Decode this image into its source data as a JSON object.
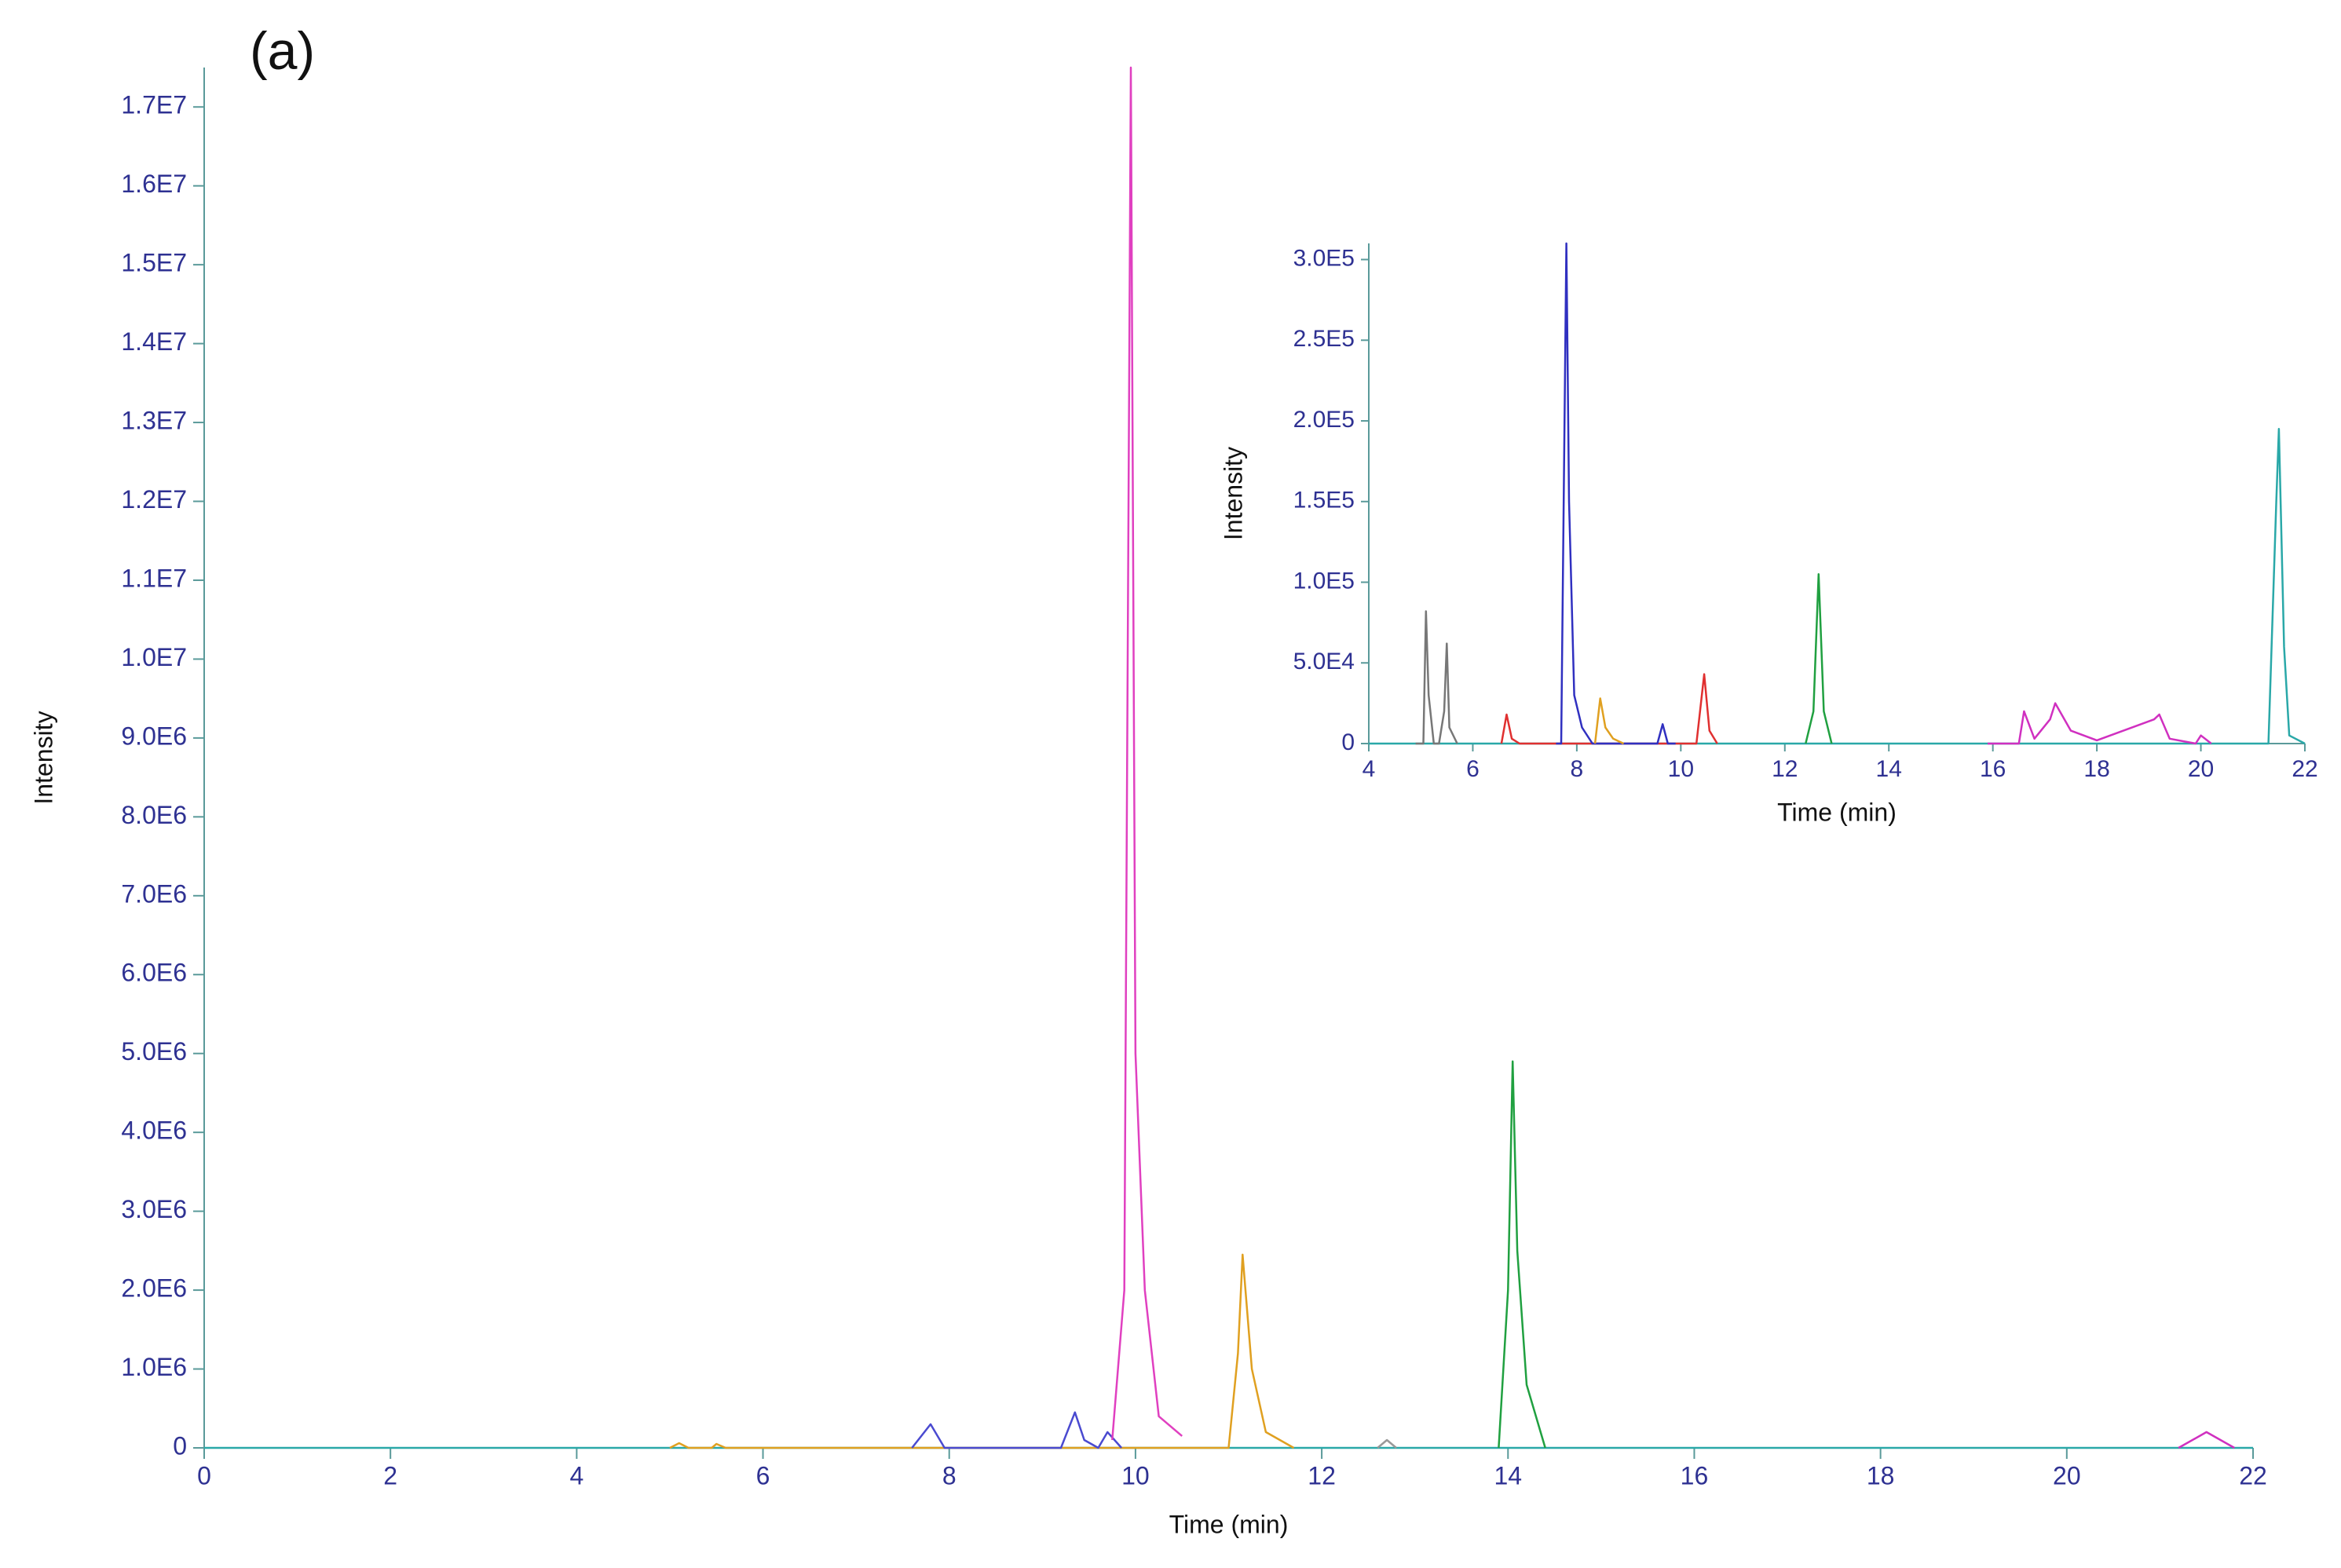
{
  "chart_data": [
    {
      "type": "line",
      "annotation": "(a)",
      "x_label": "Time (min)",
      "y_label": "Intensity",
      "xlim": [
        0,
        22
      ],
      "ylim": [
        0,
        17500000
      ],
      "xticks": [
        0,
        2,
        4,
        6,
        8,
        10,
        12,
        14,
        16,
        18,
        20,
        22
      ],
      "yticks": [
        0,
        {
          "value": 1000000,
          "label": "1.0E6"
        },
        {
          "value": 2000000,
          "label": "2.0E6"
        },
        {
          "value": 3000000,
          "label": "3.0E6"
        },
        {
          "value": 4000000,
          "label": "4.0E6"
        },
        {
          "value": 5000000,
          "label": "5.0E6"
        },
        {
          "value": 6000000,
          "label": "6.0E6"
        },
        {
          "value": 7000000,
          "label": "7.0E6"
        },
        {
          "value": 8000000,
          "label": "8.0E6"
        },
        {
          "value": 9000000,
          "label": "9.0E6"
        },
        {
          "value": 10000000,
          "label": "1.0E7"
        },
        {
          "value": 11000000,
          "label": "1.1E7"
        },
        {
          "value": 12000000,
          "label": "1.2E7"
        },
        {
          "value": 13000000,
          "label": "1.3E7"
        },
        {
          "value": 14000000,
          "label": "1.4E7"
        },
        {
          "value": 15000000,
          "label": "1.5E7"
        },
        {
          "value": 16000000,
          "label": "1.6E7"
        },
        {
          "value": 17000000,
          "label": "1.7E7"
        }
      ],
      "series": [
        {
          "color": "#2aa8a8",
          "x": [
            0,
            22
          ],
          "values": [
            0,
            0
          ]
        },
        {
          "color": "#999999",
          "x": [
            12.6,
            12.7,
            12.8
          ],
          "values": [
            0,
            100000,
            0
          ]
        },
        {
          "color": "#e0a020",
          "x": [
            5.0,
            5.1,
            5.2,
            5.45,
            5.5,
            5.6,
            11.0,
            11.1,
            11.15,
            11.25,
            11.4,
            11.7
          ],
          "values": [
            0,
            60000,
            0,
            0,
            50000,
            0,
            0,
            1200000,
            2450000,
            1000000,
            200000,
            0
          ]
        },
        {
          "color": "#4a4ad0",
          "x": [
            7.6,
            7.8,
            7.95,
            9.2,
            9.35,
            9.45,
            9.6,
            9.7,
            9.85
          ],
          "values": [
            0,
            300000,
            0,
            0,
            450000,
            100000,
            0,
            200000,
            0
          ]
        },
        {
          "color": "#e040c0",
          "x": [
            9.75,
            9.88,
            9.95,
            10.0,
            10.1,
            10.25,
            10.5
          ],
          "values": [
            100000,
            2000000,
            17500000,
            5000000,
            2000000,
            400000,
            150000
          ]
        },
        {
          "color": "#20a040",
          "x": [
            13.9,
            14.0,
            14.05,
            14.1,
            14.2,
            14.4
          ],
          "values": [
            0,
            2000000,
            4900000,
            2500000,
            800000,
            0
          ]
        },
        {
          "color": "#d030c0",
          "x": [
            21.2,
            21.5,
            21.8
          ],
          "values": [
            0,
            200000,
            0
          ]
        }
      ]
    },
    {
      "type": "line",
      "x_label": "Time (min)",
      "y_label": "Intensity",
      "xlim": [
        4,
        22
      ],
      "ylim": [
        0,
        310000
      ],
      "xticks": [
        4,
        6,
        8,
        10,
        12,
        14,
        16,
        18,
        20,
        22
      ],
      "yticks": [
        0,
        {
          "value": 50000,
          "label": "5.0E4"
        },
        {
          "value": 100000,
          "label": "1.0E5"
        },
        {
          "value": 150000,
          "label": "1.5E5"
        },
        {
          "value": 200000,
          "label": "2.0E5"
        },
        {
          "value": 250000,
          "label": "2.5E5"
        },
        {
          "value": 300000,
          "label": "3.0E5"
        }
      ],
      "series": [
        {
          "color": "#2aa8a8",
          "x": [
            4,
            21.3,
            21.45,
            21.5,
            21.6,
            21.7,
            22
          ],
          "values": [
            0,
            0,
            150000,
            195000,
            60000,
            5000,
            0
          ]
        },
        {
          "color": "#777777",
          "x": [
            4.9,
            5.05,
            5.1,
            5.15,
            5.25,
            5.35,
            5.45,
            5.5,
            5.55,
            5.7
          ],
          "values": [
            0,
            0,
            82000,
            30000,
            0,
            0,
            20000,
            62000,
            10000,
            0
          ]
        },
        {
          "color": "#e03030",
          "x": [
            6.55,
            6.65,
            6.75,
            6.9,
            10.3,
            10.45,
            10.55,
            10.7
          ],
          "values": [
            0,
            18000,
            3000,
            0,
            0,
            43000,
            8000,
            0
          ]
        },
        {
          "color": "#3030c0",
          "x": [
            7.6,
            7.7,
            7.8,
            7.85,
            7.95,
            8.1,
            8.3,
            9.55,
            9.65,
            9.75,
            9.9
          ],
          "values": [
            0,
            0,
            310000,
            150000,
            30000,
            10000,
            0,
            0,
            12000,
            0,
            0
          ]
        },
        {
          "color": "#e0a020",
          "x": [
            8.35,
            8.45,
            8.55,
            8.7,
            8.9
          ],
          "values": [
            0,
            28000,
            10000,
            3000,
            0
          ]
        },
        {
          "color": "#20a040",
          "x": [
            12.4,
            12.55,
            12.65,
            12.75,
            12.9
          ],
          "values": [
            0,
            20000,
            105000,
            20000,
            0
          ]
        },
        {
          "color": "#d030c0",
          "x": [
            15.9,
            16.5,
            16.6,
            16.8,
            17.1,
            17.2,
            17.5,
            18.0,
            19.1,
            19.2,
            19.4,
            19.9,
            20.0,
            20.2
          ],
          "values": [
            0,
            0,
            20000,
            3000,
            15000,
            25000,
            8000,
            2000,
            15000,
            18000,
            3000,
            0,
            5000,
            0
          ]
        }
      ]
    }
  ]
}
